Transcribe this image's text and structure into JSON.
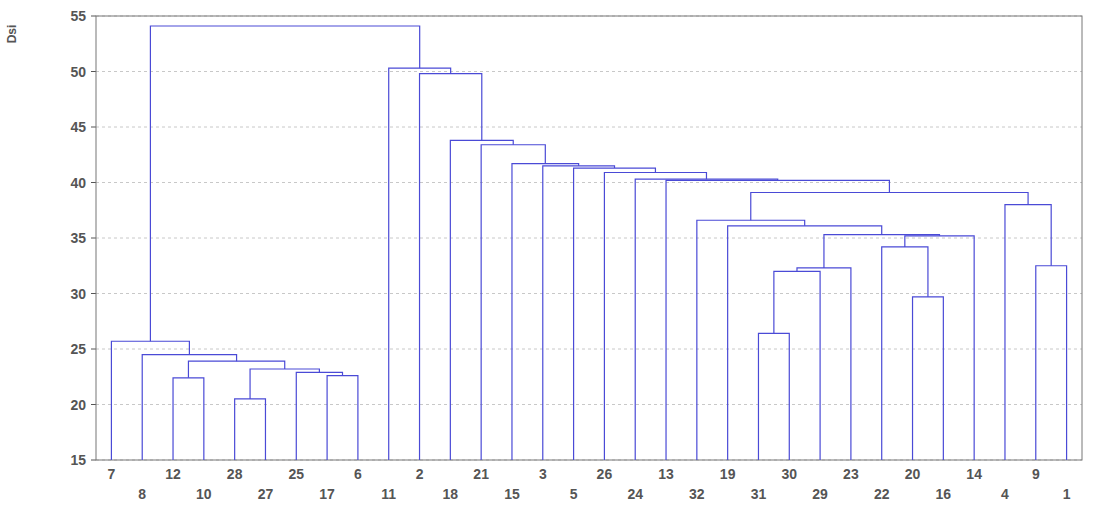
{
  "chart_data": {
    "type": "dendrogram",
    "y_label": "Dsi",
    "color": "#4a4ad6",
    "grid": true,
    "ylim": [
      15,
      55
    ],
    "yticks": [
      15,
      20,
      25,
      30,
      35,
      40,
      45,
      50,
      55
    ],
    "leaves": [
      "7",
      "8",
      "12",
      "10",
      "28",
      "27",
      "25",
      "17",
      "6",
      "11",
      "2",
      "18",
      "21",
      "15",
      "3",
      "5",
      "26",
      "24",
      "13",
      "32",
      "19",
      "31",
      "30",
      "29",
      "23",
      "22",
      "20",
      "16",
      "14",
      "4",
      "9",
      "1"
    ],
    "merges": [
      {
        "children": [
          4,
          5
        ],
        "height": 20.5
      },
      {
        "children": [
          2,
          3
        ],
        "height": 22.4
      },
      {
        "children": [
          7,
          8
        ],
        "height": 22.6
      },
      {
        "children": [
          6,
          34
        ],
        "height": 22.9
      },
      {
        "children": [
          32,
          35
        ],
        "height": 23.2
      },
      {
        "children": [
          33,
          36
        ],
        "height": 23.9
      },
      {
        "children": [
          1,
          37
        ],
        "height": 24.5
      },
      {
        "children": [
          0,
          38
        ],
        "height": 25.7
      },
      {
        "children": [
          21,
          22
        ],
        "height": 26.4
      },
      {
        "children": [
          40,
          23
        ],
        "height": 32.0
      },
      {
        "children": [
          41,
          24
        ],
        "height": 32.3
      },
      {
        "children": [
          26,
          27
        ],
        "height": 29.7
      },
      {
        "children": [
          25,
          43
        ],
        "height": 34.2
      },
      {
        "children": [
          44,
          28
        ],
        "height": 35.2
      },
      {
        "children": [
          42,
          45
        ],
        "height": 35.3
      },
      {
        "children": [
          20,
          46
        ],
        "height": 36.1
      },
      {
        "children": [
          19,
          47
        ],
        "height": 36.6
      },
      {
        "children": [
          30,
          31
        ],
        "height": 32.5
      },
      {
        "children": [
          29,
          49
        ],
        "height": 38.0
      },
      {
        "children": [
          48,
          50
        ],
        "height": 39.1
      },
      {
        "children": [
          18,
          51
        ],
        "height": 40.2
      },
      {
        "children": [
          17,
          52
        ],
        "height": 40.3
      },
      {
        "children": [
          16,
          53
        ],
        "height": 40.9
      },
      {
        "children": [
          15,
          54
        ],
        "height": 41.3
      },
      {
        "children": [
          14,
          55
        ],
        "height": 41.5
      },
      {
        "children": [
          13,
          56
        ],
        "height": 41.7
      },
      {
        "children": [
          12,
          57
        ],
        "height": 43.4
      },
      {
        "children": [
          11,
          58
        ],
        "height": 43.8
      },
      {
        "children": [
          10,
          59
        ],
        "height": 49.8
      },
      {
        "children": [
          9,
          60
        ],
        "height": 50.3
      },
      {
        "children": [
          39,
          61
        ],
        "height": 54.1
      }
    ]
  }
}
